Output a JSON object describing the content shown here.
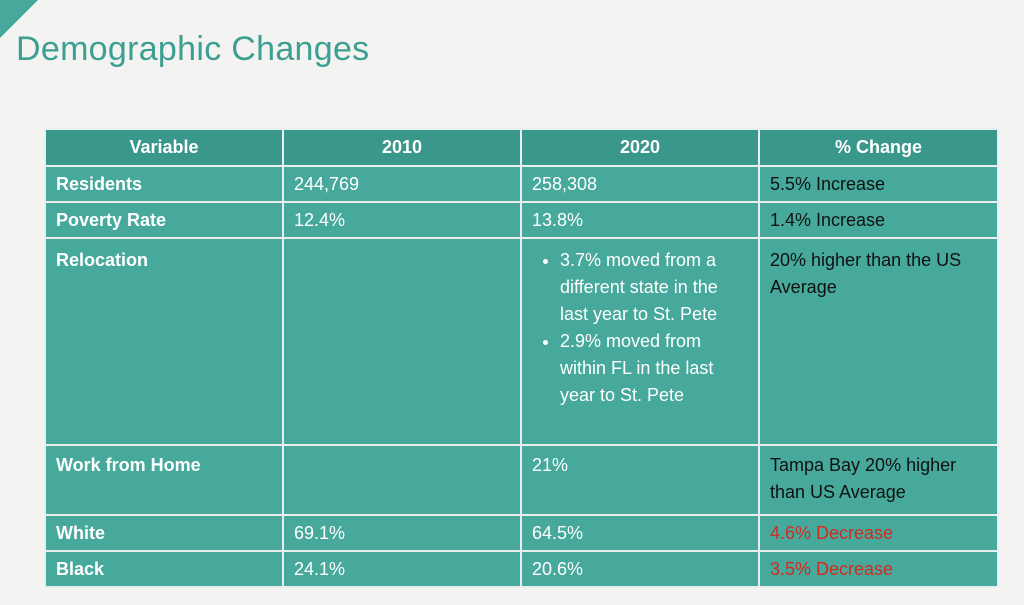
{
  "slide": {
    "title": "Demographic Changes"
  },
  "table": {
    "headers": [
      "Variable",
      "2010",
      "2020",
      "% Change"
    ],
    "rows": [
      {
        "variable": "Residents",
        "y2010": "244,769",
        "y2020": "258,308",
        "change": "5.5% Increase"
      },
      {
        "variable": "Poverty Rate",
        "y2010": "12.4%",
        "y2020": "13.8%",
        "change": "1.4% Increase"
      },
      {
        "variable": "Relocation",
        "y2010": "",
        "y2020_bullets": [
          "3.7% moved from a different state in the last year to St. Pete",
          "2.9% moved from within FL in the last year to St. Pete"
        ],
        "change": "20% higher than the US Average"
      },
      {
        "variable": "Work from Home",
        "y2010": "",
        "y2020": "21%",
        "change": "Tampa Bay 20% higher than US Average"
      },
      {
        "variable": "White",
        "y2010": "69.1%",
        "y2020": "64.5%",
        "change": "4.6% Decrease"
      },
      {
        "variable": "Black",
        "y2010": "24.1%",
        "y2020": "20.6%",
        "change": "3.5% Decrease"
      }
    ]
  },
  "colors": {
    "accent": "#46a99c",
    "header": "#3a978b",
    "decrease": "#d42a1e"
  }
}
